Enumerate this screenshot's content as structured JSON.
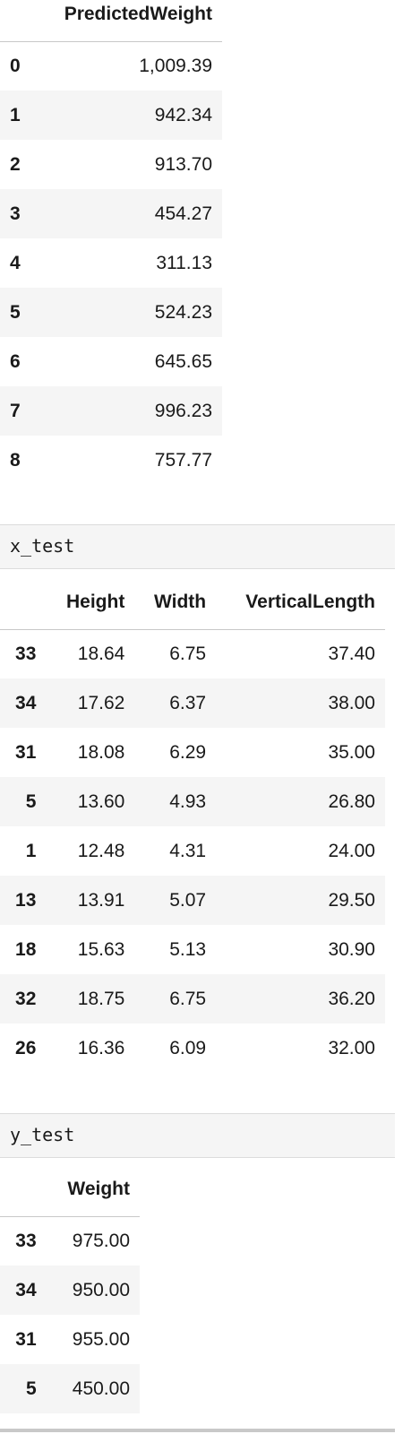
{
  "predicted_table": {
    "header": [
      "",
      "PredictedWeight"
    ],
    "rows": [
      [
        "0",
        "1,009.39"
      ],
      [
        "1",
        "942.34"
      ],
      [
        "2",
        "913.70"
      ],
      [
        "3",
        "454.27"
      ],
      [
        "4",
        "311.13"
      ],
      [
        "5",
        "524.23"
      ],
      [
        "6",
        "645.65"
      ],
      [
        "7",
        "996.23"
      ],
      [
        "8",
        "757.77"
      ]
    ]
  },
  "cell_x_test": {
    "code": "x_test"
  },
  "x_test_table": {
    "header": [
      "",
      "Height",
      "Width",
      "VerticalLength"
    ],
    "rows": [
      [
        "33",
        "18.64",
        "6.75",
        "37.40"
      ],
      [
        "34",
        "17.62",
        "6.37",
        "38.00"
      ],
      [
        "31",
        "18.08",
        "6.29",
        "35.00"
      ],
      [
        "5",
        "13.60",
        "4.93",
        "26.80"
      ],
      [
        "1",
        "12.48",
        "4.31",
        "24.00"
      ],
      [
        "13",
        "13.91",
        "5.07",
        "29.50"
      ],
      [
        "18",
        "15.63",
        "5.13",
        "30.90"
      ],
      [
        "32",
        "18.75",
        "6.75",
        "36.20"
      ],
      [
        "26",
        "16.36",
        "6.09",
        "32.00"
      ]
    ]
  },
  "cell_y_test": {
    "code": "y_test"
  },
  "y_test_table": {
    "header": [
      "",
      "Weight"
    ],
    "rows": [
      [
        "33",
        "975.00"
      ],
      [
        "34",
        "950.00"
      ],
      [
        "31",
        "955.00"
      ],
      [
        "5",
        "450.00"
      ]
    ]
  }
}
